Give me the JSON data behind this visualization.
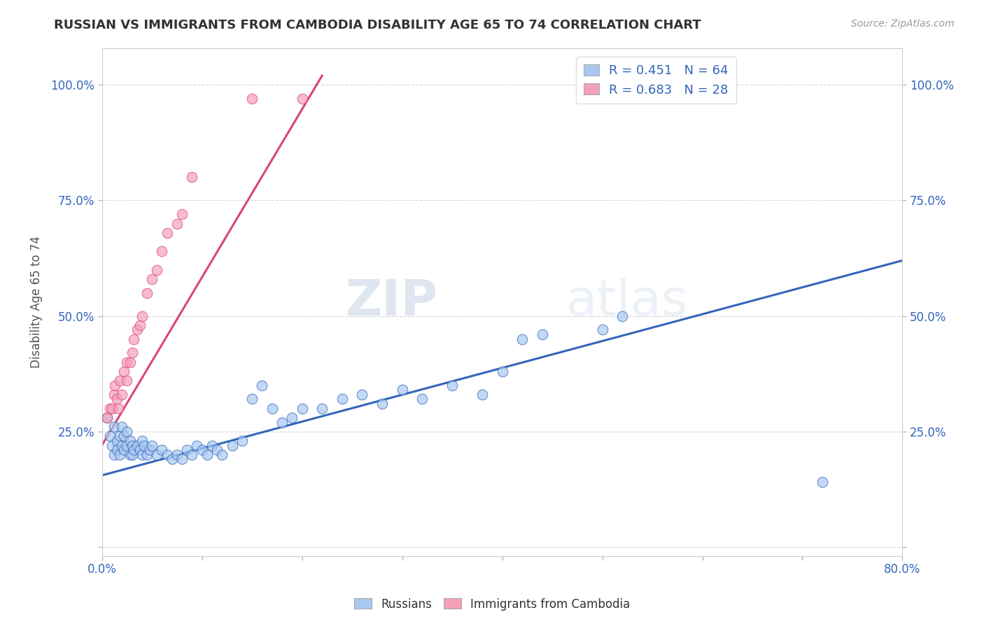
{
  "title": "RUSSIAN VS IMMIGRANTS FROM CAMBODIA DISABILITY AGE 65 TO 74 CORRELATION CHART",
  "source_text": "Source: ZipAtlas.com",
  "xlabel": "",
  "ylabel": "Disability Age 65 to 74",
  "xlim": [
    0.0,
    0.8
  ],
  "ylim": [
    -0.02,
    1.08
  ],
  "xticks": [
    0.0,
    0.1,
    0.2,
    0.3,
    0.4,
    0.5,
    0.6,
    0.7,
    0.8
  ],
  "xticklabels": [
    "0.0%",
    "",
    "",
    "",
    "",
    "",
    "",
    "",
    "80.0%"
  ],
  "yticks": [
    0.0,
    0.25,
    0.5,
    0.75,
    1.0
  ],
  "yticklabels": [
    "",
    "25.0%",
    "50.0%",
    "75.0%",
    "100.0%"
  ],
  "blue_scatter_x": [
    0.005,
    0.008,
    0.01,
    0.012,
    0.012,
    0.015,
    0.015,
    0.018,
    0.018,
    0.02,
    0.02,
    0.022,
    0.022,
    0.025,
    0.025,
    0.028,
    0.028,
    0.03,
    0.03,
    0.032,
    0.035,
    0.038,
    0.04,
    0.04,
    0.042,
    0.045,
    0.048,
    0.05,
    0.055,
    0.06,
    0.065,
    0.07,
    0.075,
    0.08,
    0.085,
    0.09,
    0.095,
    0.1,
    0.105,
    0.11,
    0.115,
    0.12,
    0.13,
    0.14,
    0.15,
    0.16,
    0.17,
    0.18,
    0.19,
    0.2,
    0.22,
    0.24,
    0.26,
    0.28,
    0.3,
    0.32,
    0.35,
    0.38,
    0.4,
    0.42,
    0.44,
    0.5,
    0.52,
    0.72
  ],
  "blue_scatter_y": [
    0.28,
    0.24,
    0.22,
    0.2,
    0.26,
    0.23,
    0.21,
    0.24,
    0.2,
    0.22,
    0.26,
    0.21,
    0.24,
    0.22,
    0.25,
    0.2,
    0.23,
    0.22,
    0.2,
    0.21,
    0.22,
    0.21,
    0.23,
    0.2,
    0.22,
    0.2,
    0.21,
    0.22,
    0.2,
    0.21,
    0.2,
    0.19,
    0.2,
    0.19,
    0.21,
    0.2,
    0.22,
    0.21,
    0.2,
    0.22,
    0.21,
    0.2,
    0.22,
    0.23,
    0.32,
    0.35,
    0.3,
    0.27,
    0.28,
    0.3,
    0.3,
    0.32,
    0.33,
    0.31,
    0.34,
    0.32,
    0.35,
    0.33,
    0.38,
    0.45,
    0.46,
    0.47,
    0.5,
    0.14
  ],
  "pink_scatter_x": [
    0.005,
    0.008,
    0.01,
    0.012,
    0.013,
    0.015,
    0.016,
    0.018,
    0.02,
    0.022,
    0.025,
    0.025,
    0.028,
    0.03,
    0.032,
    0.035,
    0.038,
    0.04,
    0.045,
    0.05,
    0.055,
    0.06,
    0.065,
    0.075,
    0.08,
    0.09,
    0.15,
    0.2
  ],
  "pink_scatter_y": [
    0.28,
    0.3,
    0.3,
    0.33,
    0.35,
    0.32,
    0.3,
    0.36,
    0.33,
    0.38,
    0.36,
    0.4,
    0.4,
    0.42,
    0.45,
    0.47,
    0.48,
    0.5,
    0.55,
    0.58,
    0.6,
    0.64,
    0.68,
    0.7,
    0.72,
    0.8,
    0.97,
    0.97
  ],
  "blue_line_x": [
    0.0,
    0.8
  ],
  "blue_line_y": [
    0.155,
    0.62
  ],
  "pink_line_x": [
    0.0,
    0.22
  ],
  "pink_line_y": [
    0.22,
    1.02
  ],
  "blue_color": "#a8c8f0",
  "pink_color": "#f4a0b8",
  "blue_line_color": "#3366bb",
  "pink_line_color": "#dd4477",
  "R_blue": "0.451",
  "N_blue": "64",
  "R_pink": "0.683",
  "N_pink": "28",
  "legend1_label": "Russians",
  "legend2_label": "Immigrants from Cambodia",
  "watermark_zip": "ZIP",
  "watermark_atlas": "atlas",
  "title_color": "#333333",
  "axis_color": "#3366bb",
  "background_color": "#ffffff",
  "grid_color": "#cccccc"
}
